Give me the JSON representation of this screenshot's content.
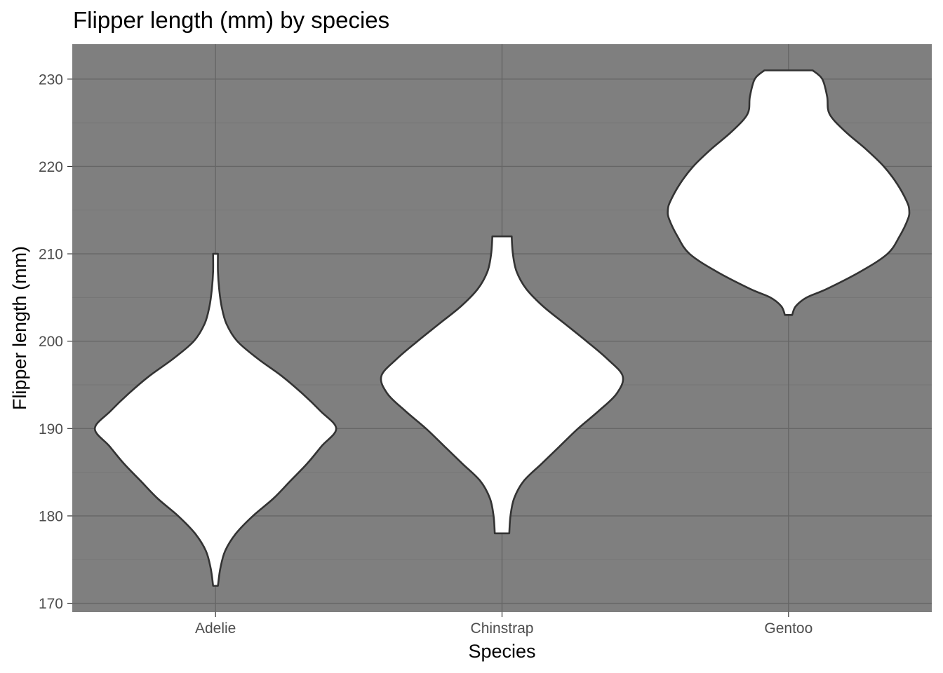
{
  "chart_data": {
    "type": "violin",
    "title": "Flipper length (mm) by species",
    "xlabel": "Species",
    "ylabel": "Flipper length (mm)",
    "categories": [
      "Adelie",
      "Chinstrap",
      "Gentoo"
    ],
    "ylim": [
      169,
      234
    ],
    "yticks": [
      170,
      180,
      190,
      200,
      210,
      220,
      230
    ],
    "grid": true,
    "legend": "none",
    "colors": {
      "panel": "#7f7f7f",
      "violin_fill": "#ffffff",
      "violin_outline": "#333333"
    },
    "series": [
      {
        "category": "Adelie",
        "min": 172,
        "max": 210,
        "density_profile": [
          {
            "y": 172,
            "w": 0.02
          },
          {
            "y": 174,
            "w": 0.04
          },
          {
            "y": 176,
            "w": 0.08
          },
          {
            "y": 178,
            "w": 0.17
          },
          {
            "y": 180,
            "w": 0.31
          },
          {
            "y": 182,
            "w": 0.48
          },
          {
            "y": 184,
            "w": 0.62
          },
          {
            "y": 186,
            "w": 0.76
          },
          {
            "y": 188,
            "w": 0.88
          },
          {
            "y": 190,
            "w": 1.0
          },
          {
            "y": 192,
            "w": 0.87
          },
          {
            "y": 194,
            "w": 0.72
          },
          {
            "y": 196,
            "w": 0.55
          },
          {
            "y": 198,
            "w": 0.35
          },
          {
            "y": 200,
            "w": 0.18
          },
          {
            "y": 202,
            "w": 0.09
          },
          {
            "y": 204,
            "w": 0.05
          },
          {
            "y": 206,
            "w": 0.03
          },
          {
            "y": 208,
            "w": 0.02
          },
          {
            "y": 210,
            "w": 0.02
          }
        ]
      },
      {
        "category": "Chinstrap",
        "min": 178,
        "max": 212,
        "density_profile": [
          {
            "y": 178,
            "w": 0.06
          },
          {
            "y": 180,
            "w": 0.07
          },
          {
            "y": 182,
            "w": 0.1
          },
          {
            "y": 184,
            "w": 0.18
          },
          {
            "y": 186,
            "w": 0.33
          },
          {
            "y": 188,
            "w": 0.48
          },
          {
            "y": 190,
            "w": 0.63
          },
          {
            "y": 192,
            "w": 0.8
          },
          {
            "y": 194,
            "w": 0.95
          },
          {
            "y": 196,
            "w": 1.0
          },
          {
            "y": 198,
            "w": 0.87
          },
          {
            "y": 200,
            "w": 0.7
          },
          {
            "y": 202,
            "w": 0.52
          },
          {
            "y": 204,
            "w": 0.34
          },
          {
            "y": 206,
            "w": 0.2
          },
          {
            "y": 208,
            "w": 0.12
          },
          {
            "y": 210,
            "w": 0.09
          },
          {
            "y": 212,
            "w": 0.08
          }
        ]
      },
      {
        "category": "Gentoo",
        "min": 203,
        "max": 231,
        "density_profile": [
          {
            "y": 203,
            "w": 0.03
          },
          {
            "y": 204,
            "w": 0.06
          },
          {
            "y": 205,
            "w": 0.15
          },
          {
            "y": 206,
            "w": 0.32
          },
          {
            "y": 208,
            "w": 0.6
          },
          {
            "y": 210,
            "w": 0.82
          },
          {
            "y": 212,
            "w": 0.92
          },
          {
            "y": 214,
            "w": 0.99
          },
          {
            "y": 215,
            "w": 1.0
          },
          {
            "y": 216,
            "w": 0.98
          },
          {
            "y": 218,
            "w": 0.9
          },
          {
            "y": 220,
            "w": 0.79
          },
          {
            "y": 222,
            "w": 0.64
          },
          {
            "y": 224,
            "w": 0.47
          },
          {
            "y": 226,
            "w": 0.34
          },
          {
            "y": 228,
            "w": 0.32
          },
          {
            "y": 230,
            "w": 0.28
          },
          {
            "y": 231,
            "w": 0.2
          }
        ]
      }
    ]
  }
}
